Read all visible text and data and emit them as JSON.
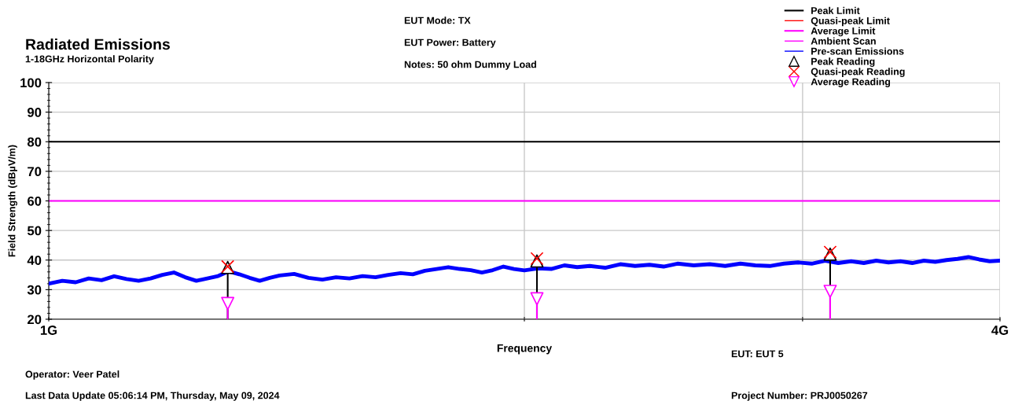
{
  "chart_data": {
    "type": "line",
    "title": "Radiated Emissions",
    "subtitle": "1-18GHz Horizontal Polarity",
    "xlabel": "Frequency",
    "ylabel": "Field Strength (dBμV/m)",
    "log": "x",
    "xlim": [
      1,
      4
    ],
    "xticks": [
      {
        "value": 1,
        "label": "1G"
      },
      {
        "value": 2,
        "label": null
      },
      {
        "value": 3,
        "label": null
      },
      {
        "value": 4,
        "label": "4G"
      }
    ],
    "ylim": [
      20,
      100
    ],
    "yticks": [
      20,
      30,
      40,
      50,
      60,
      70,
      80,
      90,
      100
    ],
    "grid": true,
    "legend": "top right",
    "ref_lines": [
      {
        "axis": "y",
        "value": 80,
        "label": "Peak Limit",
        "color": "#000000"
      },
      {
        "axis": "y",
        "value": 60,
        "label": "Average Limit",
        "color": "#ff00ff"
      }
    ],
    "series": [
      {
        "name": "Quasi-peak Limit",
        "type": "line",
        "color": "#ff0000"
      },
      {
        "name": "Ambient Scan",
        "type": "line",
        "color": "#ff00ff"
      },
      {
        "name": "Pre-scan Emissions",
        "color": "#0000ff",
        "marker": "none",
        "x": [
          1.0,
          1.02,
          1.04,
          1.06,
          1.08,
          1.1,
          1.12,
          1.14,
          1.16,
          1.18,
          1.2,
          1.22,
          1.24,
          1.26,
          1.28,
          1.3,
          1.32,
          1.34,
          1.36,
          1.38,
          1.4,
          1.43,
          1.46,
          1.49,
          1.52,
          1.55,
          1.58,
          1.61,
          1.64,
          1.67,
          1.7,
          1.73,
          1.76,
          1.79,
          1.82,
          1.85,
          1.88,
          1.91,
          1.94,
          1.97,
          2.0,
          2.04,
          2.08,
          2.12,
          2.16,
          2.2,
          2.25,
          2.3,
          2.35,
          2.4,
          2.45,
          2.5,
          2.56,
          2.62,
          2.68,
          2.74,
          2.8,
          2.86,
          2.92,
          2.98,
          3.04,
          3.1,
          3.16,
          3.22,
          3.28,
          3.34,
          3.4,
          3.46,
          3.52,
          3.58,
          3.64,
          3.7,
          3.76,
          3.82,
          3.88,
          3.94,
          4.0
        ],
        "values": [
          32.0,
          33.0,
          32.5,
          33.8,
          33.2,
          34.5,
          33.6,
          33.0,
          33.8,
          35.0,
          35.8,
          34.2,
          33.0,
          33.8,
          34.6,
          36.2,
          35.2,
          34.0,
          33.0,
          34.0,
          34.8,
          35.3,
          34.0,
          33.4,
          34.2,
          33.8,
          34.6,
          34.2,
          35.0,
          35.6,
          35.2,
          36.4,
          37.0,
          37.6,
          37.0,
          36.6,
          35.8,
          36.6,
          37.8,
          37.0,
          36.5,
          37.2,
          37.0,
          38.2,
          37.6,
          38.0,
          37.4,
          38.6,
          38.0,
          38.4,
          37.8,
          38.8,
          38.2,
          38.6,
          38.0,
          38.8,
          38.2,
          38.0,
          38.8,
          39.2,
          38.8,
          39.8,
          39.0,
          39.6,
          39.0,
          39.8,
          39.2,
          39.6,
          39.0,
          39.8,
          39.4,
          40.0,
          40.4,
          41.0,
          40.2,
          39.6,
          39.8
        ]
      },
      {
        "name": "Peak Reading",
        "type": "lollipop",
        "color": "#000000",
        "marker": "triangle",
        "x": [
          1.298,
          2.037,
          3.123
        ],
        "values": [
          37.5,
          39.7,
          42.0
        ]
      },
      {
        "name": "Quasi-peak Reading",
        "type": "scatter",
        "color": "#ff0000",
        "marker": "cross",
        "x": [
          1.298,
          2.037,
          3.123
        ],
        "values": [
          37.8,
          40.5,
          42.7
        ]
      },
      {
        "name": "Average Reading",
        "type": "lollipop",
        "color": "#ff00ff",
        "marker": "triangle_down",
        "x": [
          1.298,
          2.037,
          3.123
        ],
        "values": [
          25.3,
          26.9,
          29.4
        ]
      }
    ],
    "annotations": [
      "EUT Mode: TX",
      "EUT Power: Battery",
      "Notes: 50 ohm Dummy Load",
      "EUT: EUT 5",
      "Operator: Veer Patel",
      "Last Data Update 05:06:14 PM, Thursday, May 09, 2024",
      "Project Number: PRJ0050267"
    ]
  }
}
